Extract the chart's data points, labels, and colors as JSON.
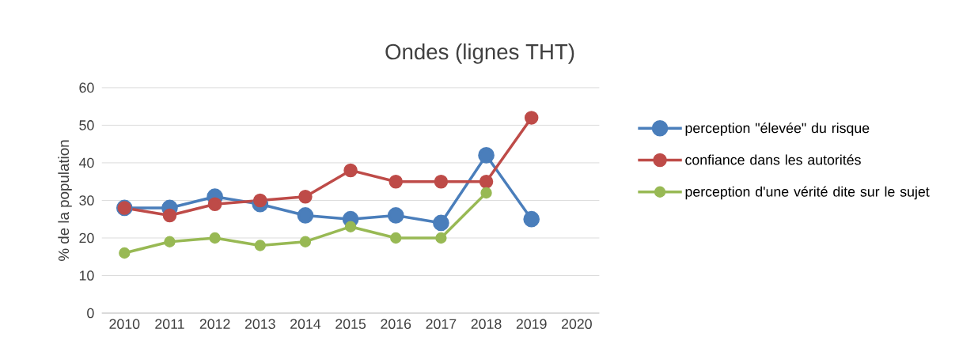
{
  "chart_data": {
    "type": "line",
    "title": "Ondes (lignes THT)",
    "ylabel": "% de la population",
    "categories": [
      "2010",
      "2011",
      "2012",
      "2013",
      "2014",
      "2015",
      "2016",
      "2017",
      "2018",
      "2019",
      "2020"
    ],
    "series": [
      {
        "name": "perception \"élevée\" du risque",
        "color": "#4a7ebb",
        "values": [
          28,
          28,
          31,
          29,
          26,
          25,
          26,
          24,
          42,
          25,
          null
        ]
      },
      {
        "name": "confiance dans les autorités",
        "color": "#be4b48",
        "values": [
          28,
          26,
          29,
          30,
          31,
          38,
          35,
          35,
          35,
          52,
          null
        ]
      },
      {
        "name": "perception d'une vérité dite sur le sujet",
        "color": "#98b954",
        "values": [
          16,
          19,
          20,
          18,
          19,
          23,
          20,
          20,
          32,
          null,
          null
        ]
      }
    ],
    "ylim": [
      0,
      60
    ],
    "yticks": [
      0,
      10,
      20,
      30,
      40,
      50,
      60
    ],
    "grid": "y",
    "legend": "right",
    "marker": "circle",
    "line_style": "solid"
  }
}
